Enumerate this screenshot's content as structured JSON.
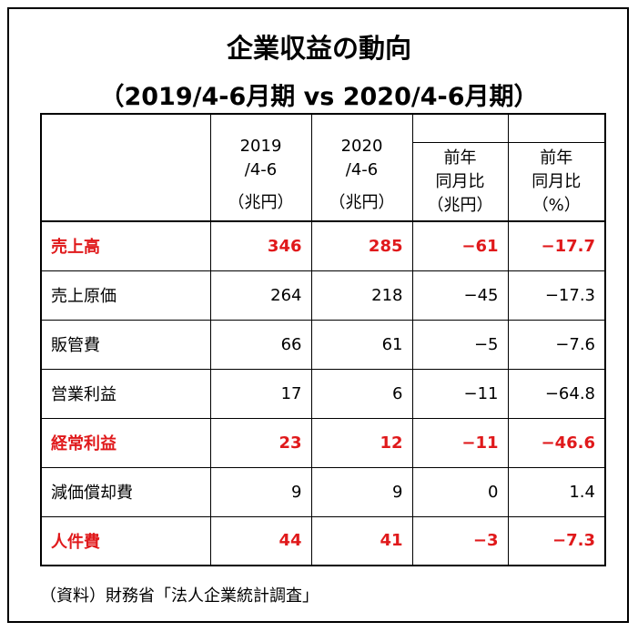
{
  "title": "企業収益の動向",
  "subtitle": "（2019/4-6月期 vs 2020/4-6月期）",
  "headers": {
    "col1": {
      "year": "2019",
      "period": "/4-6",
      "unit": "（兆円）"
    },
    "col2": {
      "year": "2020",
      "period": "/4-6",
      "unit": "（兆円）"
    },
    "col3": {
      "line1": "前年",
      "line2": "同月比",
      "unit": "（兆円）"
    },
    "col4": {
      "line1": "前年",
      "line2": "同月比",
      "unit": "（%）"
    }
  },
  "rows": [
    {
      "label": "売上高",
      "v2019": "346",
      "v2020": "285",
      "diff": "−61",
      "pct": "−17.7",
      "highlight": true
    },
    {
      "label": "売上原価",
      "v2019": "264",
      "v2020": "218",
      "diff": "−45",
      "pct": "−17.3",
      "highlight": false
    },
    {
      "label": "販管費",
      "v2019": "66",
      "v2020": "61",
      "diff": "−5",
      "pct": "−7.6",
      "highlight": false
    },
    {
      "label": "営業利益",
      "v2019": "17",
      "v2020": "6",
      "diff": "−11",
      "pct": "−64.8",
      "highlight": false
    },
    {
      "label": "経常利益",
      "v2019": "23",
      "v2020": "12",
      "diff": "−11",
      "pct": "−46.6",
      "highlight": true
    },
    {
      "label": "減価償却費",
      "v2019": "9",
      "v2020": "9",
      "diff": "0",
      "pct": "1.4",
      "highlight": false
    },
    {
      "label": "人件費",
      "v2019": "44",
      "v2020": "41",
      "diff": "−3",
      "pct": "−7.3",
      "highlight": true
    }
  ],
  "source": "（資料）財務省「法人企業統計調査」",
  "colors": {
    "highlight": "#e0191b",
    "text": "#000000"
  }
}
